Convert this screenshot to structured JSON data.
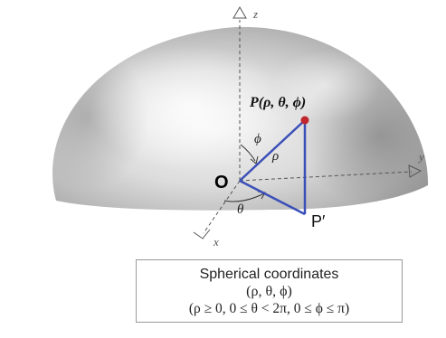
{
  "diagram": {
    "axis_z_label": "z",
    "axis_y_label": "y",
    "axis_x_label": "x",
    "origin_label": "O",
    "point_label": "P(ρ, θ, ϕ)",
    "projection_label": "P′",
    "rho_label": "ρ",
    "phi_label": "ϕ",
    "theta_label": "θ",
    "colors": {
      "triangle": "#3a4fb8",
      "point": "#c0262c",
      "axes": "#555555"
    }
  },
  "caption": {
    "title": "Spherical coordinates",
    "tuple": "(ρ, θ, ϕ)",
    "range": "(ρ ≥ 0, 0 ≤ θ < 2π, 0 ≤ ϕ ≤ π)"
  }
}
